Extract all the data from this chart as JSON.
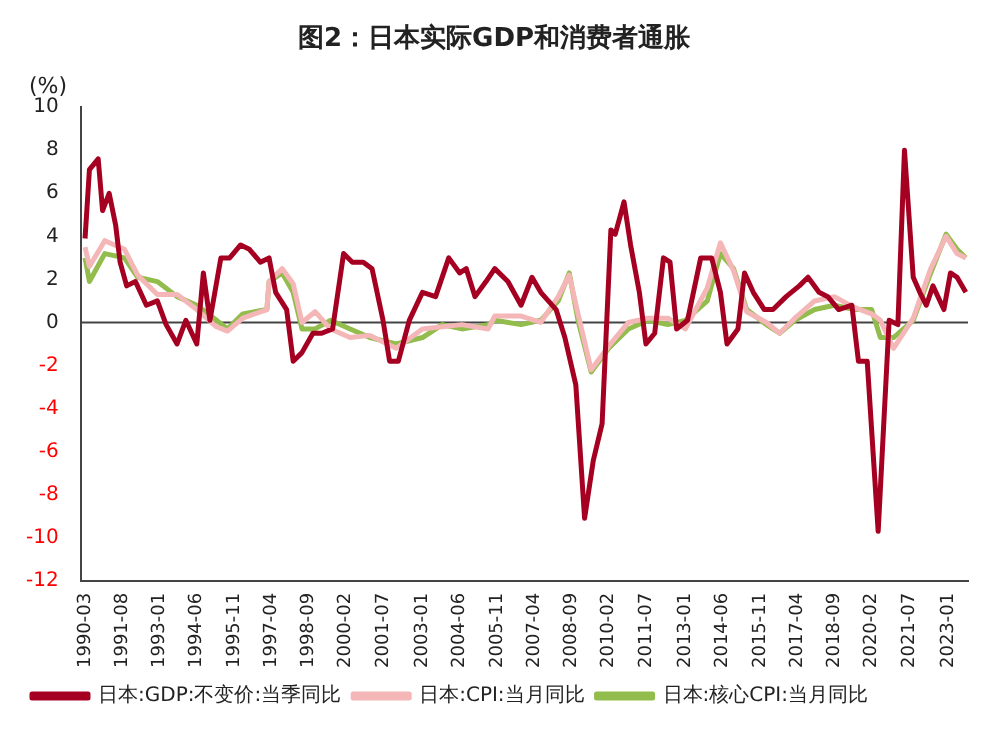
{
  "chart_data": {
    "type": "line",
    "title": "图2：日本实际GDP和消费者通胀",
    "ylabel": "(%)",
    "xlim": [
      "1990-01",
      "2023-10"
    ],
    "ylim": [
      -12,
      10
    ],
    "yticks": [
      -12,
      -10,
      -8,
      -6,
      -4,
      -2,
      0,
      2,
      4,
      6,
      8,
      10
    ],
    "xticks": [
      "1990-03",
      "1991-08",
      "1993-01",
      "1994-06",
      "1995-11",
      "1997-04",
      "1998-09",
      "2000-02",
      "2001-07",
      "2003-01",
      "2004-06",
      "2005-11",
      "2007-04",
      "2008-09",
      "2010-02",
      "2011-07",
      "2013-01",
      "2014-06",
      "2015-11",
      "2017-04",
      "2018-09",
      "2020-02",
      "2021-07",
      "2023-01"
    ],
    "grid": false,
    "ref_lines": [
      {
        "axis": "y",
        "value": 0,
        "color": "#444444"
      }
    ],
    "legend": "bottom",
    "marker": "none",
    "line_style": "solid",
    "series": [
      {
        "name": "日本:GDP:不变价:当季同比",
        "color": "#a50021",
        "x": [
          "1990-03",
          "1990-05",
          "1990-09",
          "1990-11",
          "1991-02",
          "1991-05",
          "1991-07",
          "1991-10",
          "1992-02",
          "1992-07",
          "1992-12",
          "1993-04",
          "1993-09",
          "1994-01",
          "1994-06",
          "1994-09",
          "1994-12",
          "1995-05",
          "1995-09",
          "1996-02",
          "1996-06",
          "1996-11",
          "1997-03",
          "1997-06",
          "1997-11",
          "1998-02",
          "1998-06",
          "1998-11",
          "1999-03",
          "1999-08",
          "2000-01",
          "2000-05",
          "2000-10",
          "2001-02",
          "2001-07",
          "2001-10",
          "2002-02",
          "2002-07",
          "2003-01",
          "2003-07",
          "2004-01",
          "2004-06",
          "2004-09",
          "2005-01",
          "2005-06",
          "2005-10",
          "2006-04",
          "2006-10",
          "2007-03",
          "2007-07",
          "2008-02",
          "2008-06",
          "2008-11",
          "2009-03",
          "2009-07",
          "2009-11",
          "2010-03",
          "2010-05",
          "2010-09",
          "2010-12",
          "2011-04",
          "2011-07",
          "2011-11",
          "2012-03",
          "2012-06",
          "2012-09",
          "2013-02",
          "2013-08",
          "2014-01",
          "2014-05",
          "2014-08",
          "2015-01",
          "2015-04",
          "2015-08",
          "2016-01",
          "2016-05",
          "2016-11",
          "2017-05",
          "2017-09",
          "2018-02",
          "2018-06",
          "2018-11",
          "2019-05",
          "2019-08",
          "2019-12",
          "2020-05",
          "2020-10",
          "2021-02",
          "2021-05",
          "2021-09",
          "2021-12",
          "2022-03",
          "2022-06",
          "2022-11",
          "2023-02",
          "2023-05",
          "2023-09"
        ],
        "values": [
          3.9,
          7.1,
          7.6,
          5.2,
          6.0,
          4.5,
          2.8,
          1.7,
          1.9,
          0.8,
          1.0,
          -0.1,
          -1.0,
          0.1,
          -1.0,
          2.3,
          0.1,
          3.0,
          3.0,
          3.6,
          3.4,
          2.8,
          3.0,
          1.4,
          0.6,
          -1.8,
          -1.4,
          -0.5,
          -0.5,
          -0.3,
          3.2,
          2.8,
          2.8,
          2.5,
          0.1,
          -1.8,
          -1.8,
          0.1,
          1.4,
          1.2,
          3.0,
          2.3,
          2.5,
          1.2,
          1.9,
          2.5,
          1.9,
          0.8,
          2.1,
          1.4,
          0.6,
          -0.7,
          -2.9,
          -9.1,
          -6.4,
          -4.7,
          4.3,
          4.1,
          5.6,
          3.6,
          1.4,
          -1.0,
          -0.5,
          3.0,
          2.8,
          -0.3,
          0.1,
          3.0,
          3.0,
          1.4,
          -1.0,
          -0.3,
          2.3,
          1.4,
          0.6,
          0.6,
          1.2,
          1.7,
          2.1,
          1.4,
          1.2,
          0.6,
          0.8,
          -1.8,
          -1.8,
          -9.7,
          0.1,
          -0.1,
          8.0,
          2.1,
          1.4,
          0.8,
          1.7,
          0.6,
          2.3,
          2.1,
          1.4
        ]
      },
      {
        "name": "日本:CPI:当月同比",
        "color": "#f4b6b6",
        "x": [
          "1990-03",
          "1990-05",
          "1990-12",
          "1991-09",
          "1992-03",
          "1992-12",
          "1993-09",
          "1994-06",
          "1995-03",
          "1995-08",
          "1996-03",
          "1997-02",
          "1997-03",
          "1997-09",
          "1998-02",
          "1998-06",
          "1998-12",
          "1999-07",
          "2000-04",
          "2001-01",
          "2002-01",
          "2003-01",
          "2003-10",
          "2004-07",
          "2005-07",
          "2005-10",
          "2006-10",
          "2007-07",
          "2008-03",
          "2008-08",
          "2008-12",
          "2009-06",
          "2010-02",
          "2010-11",
          "2011-08",
          "2012-05",
          "2013-01",
          "2013-11",
          "2014-05",
          "2014-11",
          "2015-05",
          "2016-02",
          "2016-08",
          "2017-03",
          "2017-12",
          "2018-09",
          "2019-06",
          "2020-02",
          "2020-06",
          "2020-12",
          "2021-09",
          "2022-05",
          "2022-12",
          "2023-05",
          "2023-09"
        ],
        "values": [
          3.5,
          2.6,
          3.8,
          3.4,
          2.2,
          1.3,
          1.3,
          0.6,
          -0.2,
          -0.4,
          0.2,
          0.6,
          1.9,
          2.5,
          1.8,
          0.0,
          0.5,
          -0.3,
          -0.7,
          -0.6,
          -1.2,
          -0.3,
          -0.2,
          -0.1,
          -0.3,
          0.3,
          0.3,
          0.0,
          1.2,
          2.2,
          0.4,
          -2.2,
          -1.1,
          0.0,
          0.2,
          0.2,
          -0.3,
          1.6,
          3.7,
          2.4,
          0.5,
          0.0,
          -0.5,
          0.2,
          1.0,
          1.2,
          0.7,
          0.4,
          0.1,
          -1.2,
          0.2,
          2.5,
          4.0,
          3.2,
          3.0
        ]
      },
      {
        "name": "日本:核心CPI:当月同比",
        "color": "#92bd4d",
        "x": [
          "1990-03",
          "1990-05",
          "1990-12",
          "1991-09",
          "1992-03",
          "1992-12",
          "1993-09",
          "1994-06",
          "1995-03",
          "1995-08",
          "1996-03",
          "1997-02",
          "1997-03",
          "1997-09",
          "1998-02",
          "1998-06",
          "1998-12",
          "1999-07",
          "2000-04",
          "2001-01",
          "2002-01",
          "2003-01",
          "2003-10",
          "2004-07",
          "2005-07",
          "2005-10",
          "2006-10",
          "2007-07",
          "2008-03",
          "2008-08",
          "2008-12",
          "2009-06",
          "2010-02",
          "2010-11",
          "2011-08",
          "2012-05",
          "2013-01",
          "2013-11",
          "2014-05",
          "2014-11",
          "2015-05",
          "2016-02",
          "2016-08",
          "2017-03",
          "2017-12",
          "2018-09",
          "2019-06",
          "2020-02",
          "2020-06",
          "2020-12",
          "2021-09",
          "2022-05",
          "2022-12",
          "2023-05",
          "2023-09"
        ],
        "values": [
          3.0,
          1.9,
          3.2,
          3.0,
          2.1,
          1.9,
          1.2,
          0.8,
          0.1,
          -0.3,
          0.4,
          0.6,
          1.9,
          2.3,
          1.4,
          -0.3,
          -0.3,
          0.1,
          -0.3,
          -0.7,
          -1.0,
          -0.7,
          -0.1,
          -0.3,
          -0.1,
          0.1,
          -0.1,
          0.1,
          1.0,
          2.3,
          0.1,
          -2.3,
          -1.2,
          -0.3,
          0.1,
          -0.1,
          0.1,
          1.0,
          3.2,
          2.5,
          0.6,
          -0.1,
          -0.5,
          0.1,
          0.6,
          0.8,
          0.6,
          0.6,
          -0.7,
          -0.7,
          0.1,
          2.3,
          4.1,
          3.4,
          3.0
        ]
      }
    ]
  }
}
